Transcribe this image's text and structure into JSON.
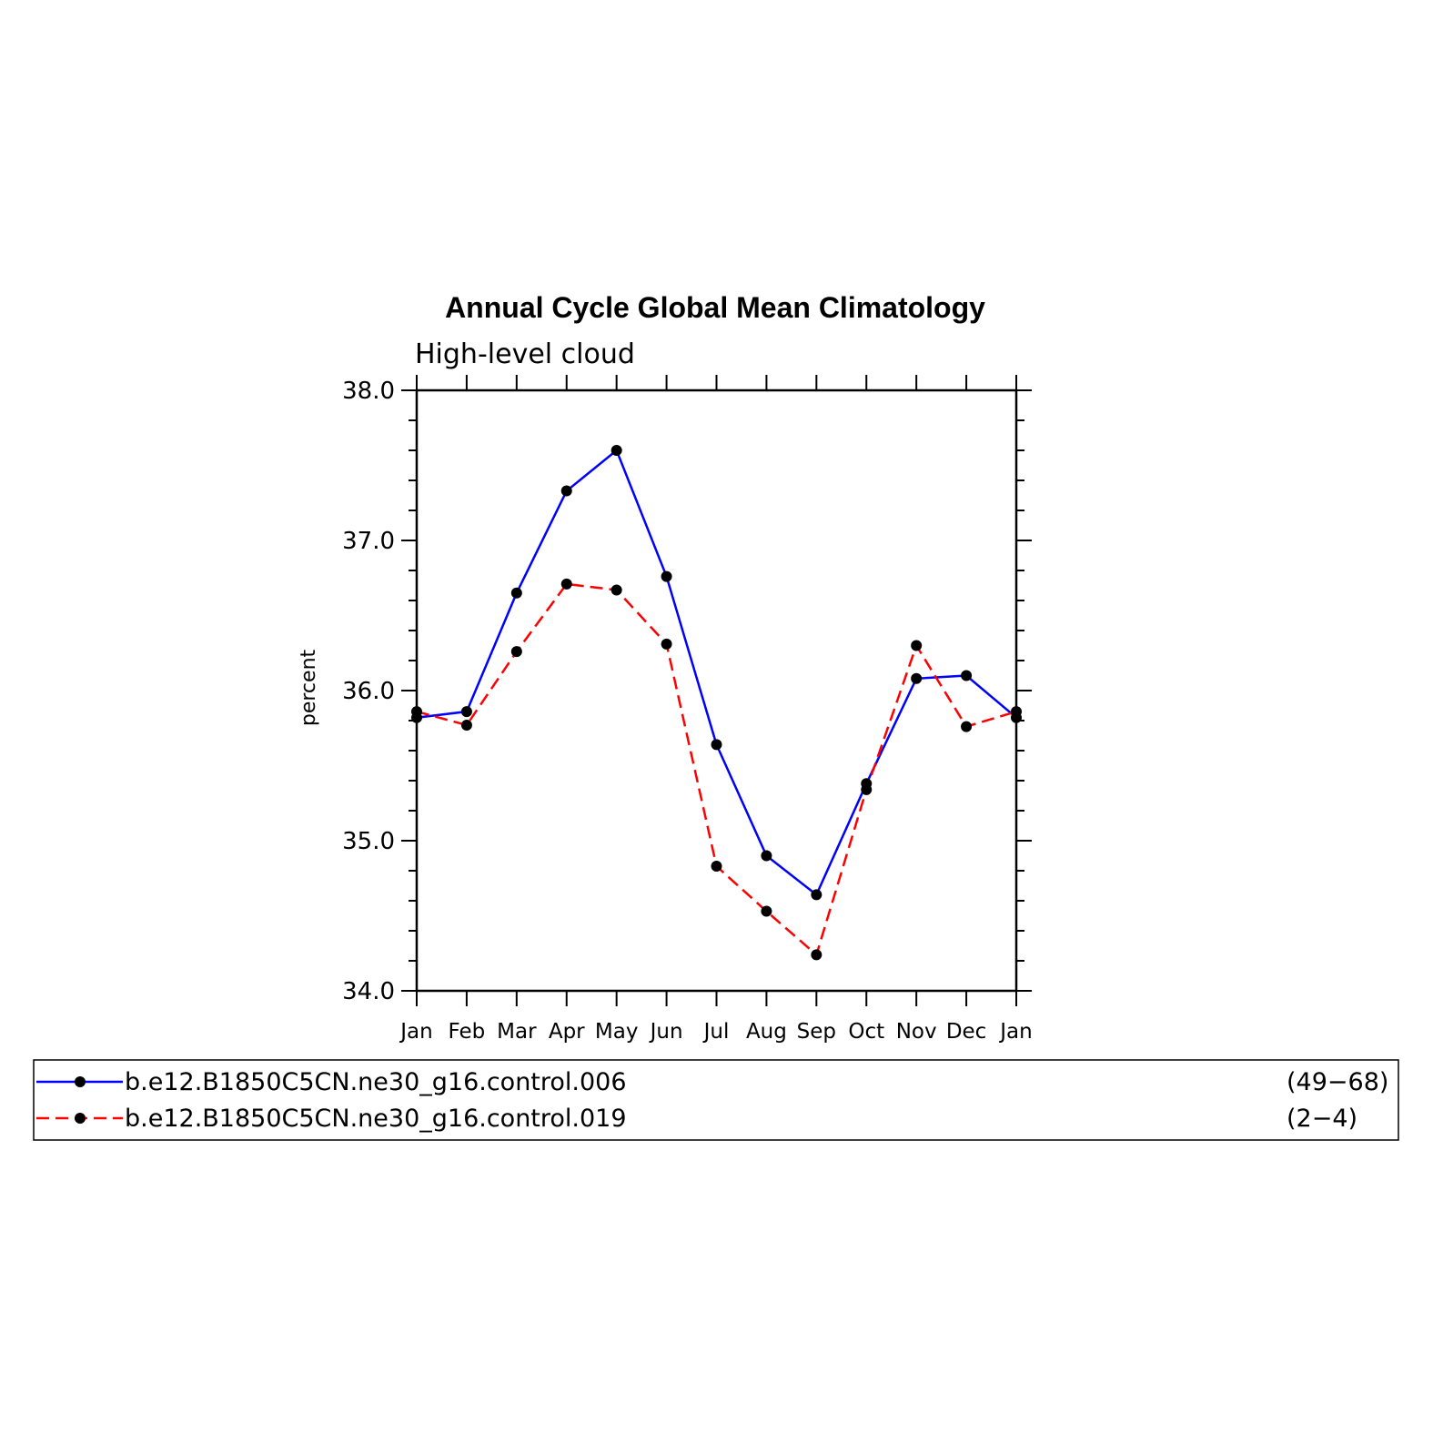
{
  "chart_data": {
    "type": "line",
    "title": "Annual Cycle Global Mean Climatology",
    "subtitle": "High-level cloud",
    "ylabel": "percent",
    "xlabel": "",
    "categories": [
      "Jan",
      "Feb",
      "Mar",
      "Apr",
      "May",
      "Jun",
      "Jul",
      "Aug",
      "Sep",
      "Oct",
      "Nov",
      "Dec",
      "Jan"
    ],
    "ylim": [
      34.0,
      38.0
    ],
    "yticks": [
      "34.0",
      "35.0",
      "36.0",
      "37.0",
      "38.0"
    ],
    "grid": false,
    "legend_position": "bottom",
    "series": [
      {
        "name": "b.e12.B1850C5CN.ne30_g16.control.006",
        "years": "(49−68)",
        "color": "#0000ff",
        "dash": "solid",
        "marker": "filled-circle",
        "values": [
          35.82,
          35.86,
          36.65,
          37.33,
          37.6,
          36.76,
          35.64,
          34.9,
          34.64,
          35.38,
          36.08,
          36.1,
          35.82
        ]
      },
      {
        "name": "b.e12.B1850C5CN.ne30_g16.control.019",
        "years": "(2−4)",
        "color": "#ff0000",
        "dash": "dashed",
        "marker": "filled-circle",
        "values": [
          35.86,
          35.77,
          36.26,
          36.71,
          36.67,
          36.31,
          34.83,
          34.53,
          34.24,
          35.34,
          36.3,
          35.76,
          35.86
        ]
      }
    ]
  }
}
